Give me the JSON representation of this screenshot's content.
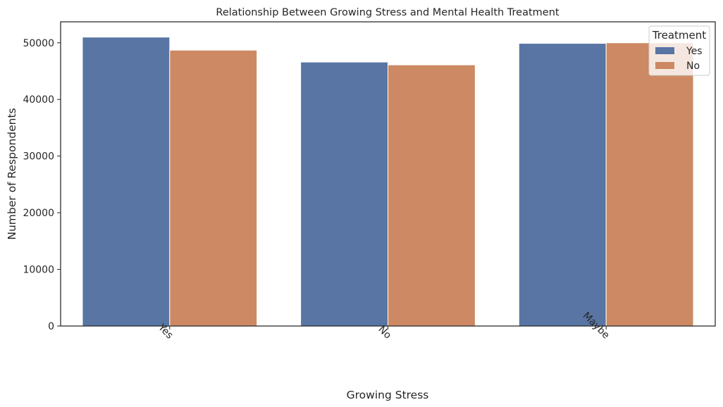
{
  "chart_data": {
    "type": "bar",
    "title": "Relationship Between Growing Stress and Mental Health Treatment",
    "xlabel": "Growing Stress",
    "ylabel": "Number of Respondents",
    "categories": [
      "Yes",
      "No",
      "Maybe"
    ],
    "series": [
      {
        "name": "Yes",
        "color": "#5875a4",
        "values": [
          51000,
          46600,
          49900
        ]
      },
      {
        "name": "No",
        "color": "#cc8963",
        "values": [
          48700,
          46100,
          50000
        ]
      }
    ],
    "ylim": [
      0,
      53700
    ],
    "yticks": [
      0,
      10000,
      20000,
      30000,
      40000,
      50000
    ],
    "ytick_labels": [
      "0",
      "10000",
      "20000",
      "30000",
      "40000",
      "50000"
    ],
    "legend": {
      "title": "Treatment",
      "position": "top-right"
    },
    "grid": false
  }
}
